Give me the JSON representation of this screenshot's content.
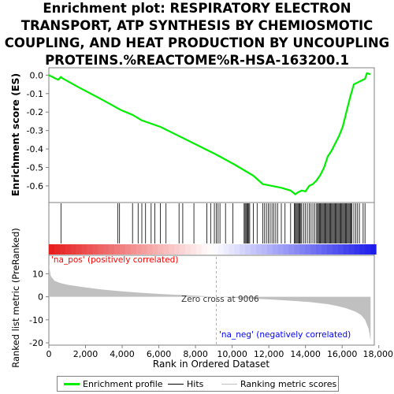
{
  "title_lines": [
    "Enrichment plot: RESPIRATORY ELECTRON",
    "TRANSPORT, ATP SYNTHESIS BY CHEMIOSMOTIC",
    "COUPLING, AND HEAT PRODUCTION BY UNCOUPLING",
    "PROTEINS.%REACTOME%R-HSA-163200.1"
  ],
  "colors": {
    "enrichment_line": "#00ee00",
    "hits": "#000000",
    "metric_fill": "#c0c0c0",
    "pos_label": "#ff0000",
    "neg_label": "#0000ff",
    "zero_cross_line": "#b0b0b0"
  },
  "legend": {
    "enrichment": "Enrichment profile",
    "hits": "Hits",
    "ranking": "Ranking metric scores"
  },
  "chart_data": [
    {
      "type": "line",
      "ylabel": "Enrichment score (ES)",
      "ylim": [
        -0.69,
        0.04
      ],
      "yticks": [
        0.0,
        -0.1,
        -0.2,
        -0.3,
        -0.4,
        -0.5,
        -0.6
      ],
      "ytick_labels": [
        "0.0",
        "-0.1",
        "-0.2",
        "-0.3",
        "-0.4",
        "-0.5",
        "-0.6"
      ],
      "xlim": [
        0,
        17500
      ],
      "grid": false,
      "series": [
        {
          "x": [
            0,
            500,
            650,
            700,
            1500,
            3000,
            3800,
            3900,
            4500,
            5000,
            6000,
            7000,
            8000,
            9000,
            10000,
            10500,
            11000,
            11500,
            12000,
            12500,
            13000,
            13250,
            13400,
            13600,
            13800,
            14000,
            14200,
            14400,
            14600,
            14800,
            15000,
            15200,
            15400,
            15600,
            15800,
            16000,
            16200,
            16400,
            16600,
            16800,
            17000,
            17100,
            17300
          ],
          "y": [
            0.0,
            -0.025,
            -0.01,
            -0.015,
            -0.06,
            -0.14,
            -0.185,
            -0.19,
            -0.215,
            -0.245,
            -0.28,
            -0.33,
            -0.38,
            -0.43,
            -0.485,
            -0.515,
            -0.545,
            -0.59,
            -0.6,
            -0.61,
            -0.625,
            -0.645,
            -0.635,
            -0.625,
            -0.63,
            -0.6,
            -0.59,
            -0.57,
            -0.54,
            -0.5,
            -0.44,
            -0.41,
            -0.37,
            -0.33,
            -0.28,
            -0.2,
            -0.12,
            -0.05,
            -0.04,
            -0.03,
            -0.02,
            0.01,
            0.005
          ]
        }
      ]
    },
    {
      "type": "scatter",
      "ylabel": "",
      "xlim": [
        0,
        17500
      ],
      "hits": [
        650,
        3700,
        3800,
        4500,
        4800,
        5000,
        5200,
        5500,
        5700,
        6000,
        6300,
        7000,
        7200,
        7800,
        8500,
        8700,
        8900,
        9000,
        9100,
        9200,
        9500,
        9900,
        10500,
        10550,
        10600,
        10650,
        10700,
        10750,
        10800,
        11000,
        11200,
        11500,
        11600,
        11700,
        11800,
        11900,
        12000,
        12100,
        12200,
        12300,
        12500,
        12700,
        13000,
        13200,
        13250,
        13300,
        13350,
        13400,
        13450,
        13500,
        13550,
        13600,
        13700,
        13800,
        13900,
        14000,
        14100,
        14200,
        14300,
        14400,
        14450,
        14500,
        14550,
        14600,
        14650,
        14700,
        14750,
        14800,
        14850,
        14900,
        14950,
        15000,
        15050,
        15100,
        15150,
        15200,
        15250,
        15300,
        15350,
        15400,
        15450,
        15500,
        15550,
        15600,
        15650,
        15700,
        15750,
        15800,
        15850,
        15900,
        15950,
        16000,
        16050,
        16100,
        16150,
        16200,
        16250,
        16300,
        16400,
        16500,
        16600,
        16700,
        16900,
        17000
      ]
    },
    {
      "type": "area",
      "xlabel": "Rank in Ordered Dataset",
      "ylabel": "Ranked list metric (PreRanked)",
      "ylim": [
        -21,
        18
      ],
      "yticks": [
        10,
        0,
        -10,
        -20
      ],
      "ytick_labels": [
        "10",
        "0",
        "-10",
        "-20"
      ],
      "xlim": [
        0,
        17500
      ],
      "xticks": [
        0,
        2000,
        4000,
        6000,
        8000,
        10000,
        12000,
        14000,
        16000,
        18000
      ],
      "xtick_labels": [
        "0",
        "2,000",
        "4,000",
        "6,000",
        "8,000",
        "10,000",
        "12,000",
        "14,000",
        "16,000",
        "18,000"
      ],
      "series": [
        {
          "x": [
            0,
            100,
            300,
            600,
            1000,
            2000,
            3000,
            4000,
            5000,
            6000,
            7000,
            8000,
            9006,
            10000,
            11000,
            12000,
            13000,
            14000,
            15000,
            15500,
            16000,
            16500,
            16800,
            17000,
            17200,
            17300
          ],
          "y": [
            14,
            9,
            7,
            6,
            5.2,
            4,
            3,
            2.3,
            1.7,
            1.2,
            0.8,
            0.4,
            0,
            -0.4,
            -0.8,
            -1.2,
            -1.7,
            -2.3,
            -3.2,
            -4,
            -5,
            -6.5,
            -8,
            -10,
            -14,
            -19
          ]
        }
      ],
      "zero_cross_label": "Zero cross at 9006",
      "pos_label": "'na_pos' (positively correlated)",
      "neg_label": "'na_neg' (negatively correlated)"
    }
  ]
}
